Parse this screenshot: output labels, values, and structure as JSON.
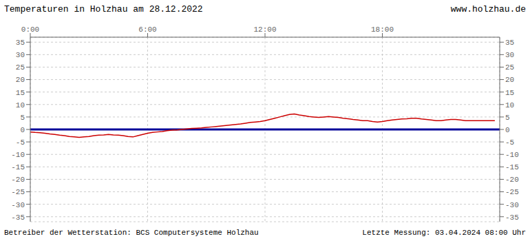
{
  "chart_data": {
    "type": "line",
    "title": "Temperaturen in Holzhau am 28.12.2022",
    "annotations": [
      "www.holzhau.de",
      "Betreiber der Wetterstation: BCS Computersysteme Holzhau",
      "Letzte Messung: 03.04.2024 08:00 Uhr"
    ],
    "xlim": [
      0,
      24
    ],
    "xticks": [
      {
        "value": 0,
        "label": "0:00"
      },
      {
        "value": 6,
        "label": "6:00"
      },
      {
        "value": 12,
        "label": "12:00"
      },
      {
        "value": 18,
        "label": "18:00"
      }
    ],
    "ylim": [
      -37,
      37
    ],
    "yticks": [
      -35,
      -30,
      -25,
      -20,
      -15,
      -10,
      -5,
      0,
      5,
      10,
      15,
      20,
      25,
      30,
      35
    ],
    "grid": true,
    "series": [
      {
        "color": "#000099",
        "x": [
          0.0,
          24.0
        ],
        "values": [
          0.0,
          0.0
        ]
      },
      {
        "color": "#cc0000",
        "x": [
          0.0,
          0.25,
          0.5,
          0.75,
          1.0,
          1.25,
          1.5,
          1.75,
          2.0,
          2.25,
          2.5,
          2.75,
          3.0,
          3.25,
          3.5,
          3.75,
          4.0,
          4.25,
          4.5,
          4.75,
          5.0,
          5.25,
          5.5,
          5.75,
          6.0,
          6.25,
          6.5,
          6.75,
          7.0,
          7.25,
          7.5,
          7.75,
          8.0,
          8.25,
          8.5,
          8.75,
          9.0,
          9.25,
          9.5,
          9.75,
          10.0,
          10.25,
          10.5,
          10.75,
          11.0,
          11.25,
          11.5,
          11.75,
          12.0,
          12.25,
          12.5,
          12.75,
          13.0,
          13.25,
          13.5,
          13.75,
          14.0,
          14.25,
          14.5,
          14.75,
          15.0,
          15.25,
          15.5,
          15.75,
          16.0,
          16.25,
          16.5,
          16.75,
          17.0,
          17.25,
          17.5,
          17.75,
          18.0,
          18.25,
          18.5,
          18.75,
          19.0,
          19.25,
          19.5,
          19.75,
          20.0,
          20.25,
          20.5,
          20.75,
          21.0,
          21.25,
          21.5,
          21.75,
          22.0,
          22.25,
          22.5,
          22.75,
          23.0,
          23.25,
          23.5,
          23.75
        ],
        "values": [
          -1.0,
          -1.2,
          -1.3,
          -1.5,
          -1.8,
          -2.0,
          -2.3,
          -2.5,
          -2.8,
          -3.0,
          -3.2,
          -3.0,
          -2.8,
          -2.5,
          -2.3,
          -2.2,
          -2.0,
          -2.2,
          -2.3,
          -2.5,
          -2.8,
          -3.0,
          -2.5,
          -2.0,
          -1.5,
          -1.2,
          -1.0,
          -0.8,
          -0.5,
          -0.3,
          -0.2,
          0.0,
          0.2,
          0.4,
          0.5,
          0.6,
          0.8,
          1.0,
          1.2,
          1.4,
          1.6,
          1.8,
          2.0,
          2.2,
          2.5,
          2.8,
          3.0,
          3.2,
          3.5,
          4.0,
          4.5,
          5.0,
          5.5,
          6.0,
          6.2,
          5.8,
          5.5,
          5.2,
          5.0,
          4.8,
          5.0,
          5.2,
          5.0,
          4.8,
          4.5,
          4.3,
          4.0,
          3.8,
          3.5,
          3.5,
          3.2,
          3.0,
          3.2,
          3.5,
          3.8,
          4.0,
          4.2,
          4.3,
          4.5,
          4.5,
          4.2,
          4.0,
          3.8,
          3.5,
          3.5,
          3.8,
          4.0,
          4.0,
          3.8,
          3.5,
          3.5,
          3.5,
          3.5,
          3.5,
          3.5,
          3.5
        ]
      }
    ]
  }
}
